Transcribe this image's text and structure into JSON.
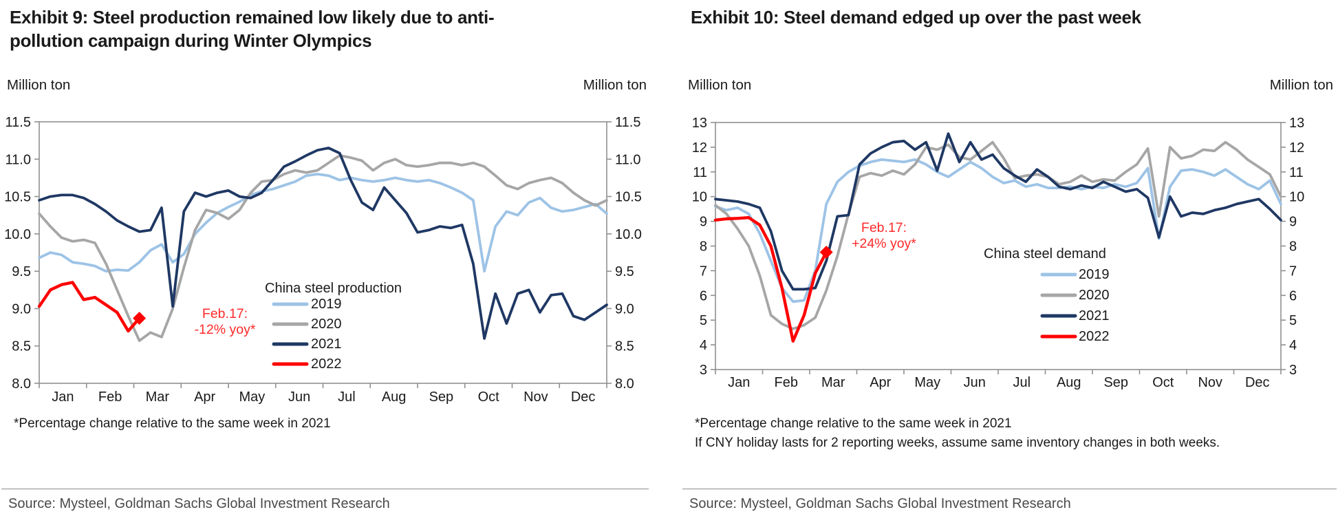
{
  "chart_data": [
    {
      "type": "line",
      "title": "Exhibit 9: Steel production remained low likely due to anti-pollution campaign during Winter Olympics",
      "axis_unit_left": "Million ton",
      "axis_unit_right": "Million ton",
      "x_tick_labels": [
        "Jan",
        "Feb",
        "Mar",
        "Apr",
        "May",
        "Jun",
        "Jul",
        "Aug",
        "Sep",
        "Oct",
        "Nov",
        "Dec"
      ],
      "y_tick_labels": [
        "11.5",
        "11.0",
        "10.5",
        "10.0",
        "9.5",
        "9.0",
        "8.5",
        "8.0"
      ],
      "ylim": [
        8.0,
        11.5
      ],
      "grid": false,
      "legend_title": "China steel production",
      "legend_position": "inside-lower-middle",
      "series": [
        {
          "name": "2019",
          "color": "#9DC3E6",
          "values": [
            9.68,
            9.75,
            9.72,
            9.62,
            9.6,
            9.57,
            9.5,
            9.52,
            9.51,
            9.62,
            9.78,
            9.86,
            9.62,
            9.73,
            10.0,
            10.15,
            10.28,
            10.36,
            10.43,
            10.52,
            10.57,
            10.6,
            10.65,
            10.7,
            10.78,
            10.8,
            10.78,
            10.72,
            10.75,
            10.72,
            10.7,
            10.72,
            10.75,
            10.72,
            10.7,
            10.72,
            10.68,
            10.62,
            10.55,
            10.45,
            9.5,
            10.1,
            10.3,
            10.25,
            10.42,
            10.48,
            10.35,
            10.3,
            10.32,
            10.36,
            10.4,
            10.27
          ]
        },
        {
          "name": "2020",
          "color": "#A6A6A6",
          "values": [
            10.27,
            10.1,
            9.95,
            9.9,
            9.92,
            9.88,
            9.6,
            9.25,
            8.9,
            8.57,
            8.68,
            8.62,
            9.0,
            9.55,
            10.05,
            10.32,
            10.28,
            10.2,
            10.32,
            10.55,
            10.7,
            10.72,
            10.8,
            10.85,
            10.82,
            10.85,
            10.95,
            11.05,
            11.02,
            10.98,
            10.85,
            10.95,
            11.0,
            10.92,
            10.9,
            10.92,
            10.95,
            10.95,
            10.92,
            10.95,
            10.9,
            10.78,
            10.65,
            10.6,
            10.68,
            10.72,
            10.75,
            10.68,
            10.55,
            10.45,
            10.38,
            10.45
          ]
        },
        {
          "name": "2021",
          "color": "#1F3864",
          "values": [
            10.45,
            10.5,
            10.52,
            10.52,
            10.48,
            10.4,
            10.3,
            10.18,
            10.1,
            10.03,
            10.05,
            10.35,
            9.03,
            10.3,
            10.55,
            10.5,
            10.55,
            10.58,
            10.5,
            10.48,
            10.55,
            10.72,
            10.9,
            10.97,
            11.05,
            11.12,
            11.15,
            11.08,
            10.72,
            10.42,
            10.32,
            10.62,
            10.45,
            10.28,
            10.02,
            10.05,
            10.1,
            10.08,
            10.12,
            9.6,
            8.6,
            9.2,
            8.8,
            9.2,
            9.25,
            8.95,
            9.18,
            9.2,
            8.9,
            8.85,
            8.95,
            9.05
          ]
        },
        {
          "name": "2022",
          "color": "#FF0000",
          "end_marker": "diamond",
          "values": [
            9.03,
            9.25,
            9.32,
            9.35,
            9.12,
            9.15,
            9.05,
            8.95,
            8.7,
            8.87
          ]
        }
      ],
      "annotation": {
        "lines": [
          "Feb.17:",
          "-12% yoy*"
        ],
        "color": "#FF2A2A"
      },
      "footnotes": [
        "*Percentage change relative to the same week in 2021"
      ],
      "source": "Source: Mysteel, Goldman Sachs Global Investment Research"
    },
    {
      "type": "line",
      "title": "Exhibit 10: Steel demand edged up over the past week",
      "axis_unit_left": "Million ton",
      "axis_unit_right": "Million ton",
      "x_tick_labels": [
        "Jan",
        "Feb",
        "Mar",
        "Apr",
        "May",
        "Jun",
        "Jul",
        "Aug",
        "Sep",
        "Oct",
        "Nov",
        "Dec"
      ],
      "y_tick_labels": [
        "13",
        "12",
        "11",
        "10",
        "9",
        "8",
        "7",
        "6",
        "5",
        "4",
        "3"
      ],
      "ylim": [
        3,
        13
      ],
      "grid": false,
      "legend_title": "China steel demand",
      "legend_position": "inside-lower-middle",
      "series": [
        {
          "name": "2019",
          "color": "#9DC3E6",
          "values": [
            9.6,
            9.45,
            9.55,
            9.3,
            8.5,
            7.4,
            6.3,
            5.75,
            5.8,
            7.0,
            9.7,
            10.6,
            11.0,
            11.25,
            11.4,
            11.5,
            11.45,
            11.4,
            11.5,
            11.3,
            11.0,
            10.8,
            11.1,
            11.4,
            11.15,
            10.8,
            10.55,
            10.65,
            10.4,
            10.5,
            10.35,
            10.35,
            10.4,
            10.3,
            10.4,
            10.35,
            10.5,
            10.4,
            10.55,
            11.15,
            8.3,
            10.4,
            11.05,
            11.1,
            11.0,
            10.85,
            11.1,
            10.8,
            10.5,
            10.3,
            10.65,
            9.7
          ]
        },
        {
          "name": "2020",
          "color": "#A6A6A6",
          "values": [
            9.65,
            9.3,
            8.7,
            8.0,
            6.8,
            5.2,
            4.85,
            4.65,
            4.8,
            5.1,
            6.2,
            7.6,
            9.3,
            10.8,
            10.95,
            10.85,
            11.05,
            10.9,
            11.3,
            12.0,
            11.9,
            12.1,
            11.6,
            11.5,
            11.85,
            12.2,
            11.55,
            10.75,
            10.85,
            10.9,
            10.8,
            10.5,
            10.6,
            10.85,
            10.6,
            10.7,
            10.65,
            11.0,
            11.3,
            11.95,
            9.2,
            12.0,
            11.55,
            11.65,
            11.9,
            11.85,
            12.2,
            11.9,
            11.5,
            11.2,
            10.9,
            10.0
          ]
        },
        {
          "name": "2021",
          "color": "#1F3864",
          "values": [
            9.9,
            9.85,
            9.8,
            9.7,
            9.55,
            8.6,
            7.0,
            6.25,
            6.25,
            6.3,
            7.4,
            9.2,
            9.25,
            11.3,
            11.75,
            12.0,
            12.2,
            12.25,
            11.9,
            12.2,
            11.05,
            12.55,
            11.4,
            12.2,
            11.5,
            11.7,
            11.15,
            10.85,
            10.6,
            11.1,
            10.8,
            10.4,
            10.3,
            10.45,
            10.35,
            10.6,
            10.4,
            10.2,
            10.3,
            9.95,
            8.35,
            10.0,
            9.2,
            9.35,
            9.3,
            9.45,
            9.55,
            9.7,
            9.8,
            9.9,
            9.5,
            9.05
          ]
        },
        {
          "name": "2022",
          "color": "#FF0000",
          "end_marker": "diamond",
          "values": [
            9.05,
            9.1,
            9.12,
            9.15,
            8.85,
            8.0,
            6.3,
            4.15,
            5.2,
            6.9,
            7.75
          ]
        }
      ],
      "annotation": {
        "lines": [
          "Feb.17:",
          "+24% yoy*"
        ],
        "color": "#FF2A2A"
      },
      "footnotes": [
        "*Percentage change relative to the same week in 2021",
        "If CNY holiday lasts for 2 reporting weeks, assume same inventory changes in both weeks."
      ],
      "source": "Source: Mysteel, Goldman Sachs Global Investment Research"
    }
  ]
}
